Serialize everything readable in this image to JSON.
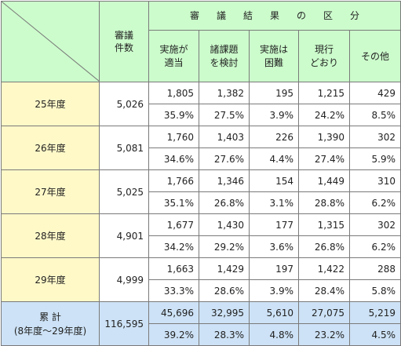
{
  "header": {
    "cases_label_1": "審議",
    "cases_label_2": "件数",
    "results_label": "審議結果の区分",
    "categories": [
      [
        "実施が",
        "適当"
      ],
      [
        "諸課題",
        "を検討"
      ],
      [
        "実施は",
        "困難"
      ],
      [
        "現行",
        "どおり"
      ],
      [
        "その他",
        ""
      ]
    ]
  },
  "rows": [
    {
      "year": "25年度",
      "cases": "5,026",
      "counts": [
        "1,805",
        "1,382",
        "195",
        "1,215",
        "429"
      ],
      "pcts": [
        "35.9%",
        "27.5%",
        "3.9%",
        "24.2%",
        "8.5%"
      ]
    },
    {
      "year": "26年度",
      "cases": "5,081",
      "counts": [
        "1,760",
        "1,403",
        "226",
        "1,390",
        "302"
      ],
      "pcts": [
        "34.6%",
        "27.6%",
        "4.4%",
        "27.4%",
        "5.9%"
      ]
    },
    {
      "year": "27年度",
      "cases": "5,025",
      "counts": [
        "1,766",
        "1,346",
        "154",
        "1,449",
        "310"
      ],
      "pcts": [
        "35.1%",
        "26.8%",
        "3.1%",
        "28.8%",
        "6.2%"
      ]
    },
    {
      "year": "28年度",
      "cases": "4,901",
      "counts": [
        "1,677",
        "1,430",
        "177",
        "1,315",
        "302"
      ],
      "pcts": [
        "34.2%",
        "29.2%",
        "3.6%",
        "26.8%",
        "6.2%"
      ]
    },
    {
      "year": "29年度",
      "cases": "4,999",
      "counts": [
        "1,663",
        "1,429",
        "197",
        "1,422",
        "288"
      ],
      "pcts": [
        "33.3%",
        "28.6%",
        "3.9%",
        "28.4%",
        "5.8%"
      ]
    }
  ],
  "total": {
    "label_1": "累 計",
    "label_2": "(8年度～29年度)",
    "cases": "116,595",
    "counts": [
      "45,696",
      "32,995",
      "5,610",
      "27,075",
      "5,219"
    ],
    "pcts": [
      "39.2%",
      "28.3%",
      "4.8%",
      "23.2%",
      "4.5%"
    ]
  }
}
